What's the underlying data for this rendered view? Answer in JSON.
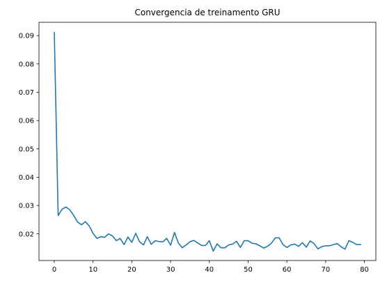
{
  "chart_data": {
    "type": "line",
    "title": "Convergencia de treinamento GRU",
    "xlabel": "",
    "ylabel": "",
    "xlim": [
      -3.95,
      82.95
    ],
    "ylim": [
      0.0106,
      0.0947
    ],
    "xticks": [
      0,
      10,
      20,
      30,
      40,
      50,
      60,
      70,
      80
    ],
    "yticks": [
      0.02,
      0.03,
      0.04,
      0.05,
      0.06,
      0.07,
      0.08,
      0.09
    ],
    "grid": false,
    "line_color": "#1f77b4",
    "series": [
      {
        "x": [
          0,
          1,
          2,
          3,
          4,
          5,
          6,
          7,
          8,
          9,
          10,
          11,
          12,
          13,
          14,
          15,
          16,
          17,
          18,
          19,
          20,
          21,
          22,
          23,
          24,
          25,
          26,
          27,
          28,
          29,
          30,
          31,
          32,
          33,
          34,
          35,
          36,
          37,
          38,
          39,
          40,
          41,
          42,
          43,
          44,
          45,
          46,
          47,
          48,
          49,
          50,
          51,
          52,
          53,
          54,
          55,
          56,
          57,
          58,
          59,
          60,
          61,
          62,
          63,
          64,
          65,
          66,
          67,
          68,
          69,
          70,
          71,
          72,
          73,
          74,
          75,
          76,
          77,
          78,
          79
        ],
        "values": [
          0.0911,
          0.0265,
          0.0287,
          0.0295,
          0.0285,
          0.0265,
          0.0242,
          0.0232,
          0.0243,
          0.0228,
          0.0202,
          0.0184,
          0.019,
          0.0188,
          0.02,
          0.0193,
          0.0176,
          0.0184,
          0.0162,
          0.0189,
          0.017,
          0.0202,
          0.0172,
          0.0161,
          0.019,
          0.0163,
          0.0176,
          0.0173,
          0.0172,
          0.0184,
          0.016,
          0.0205,
          0.0168,
          0.0151,
          0.0161,
          0.0172,
          0.0177,
          0.0168,
          0.0159,
          0.0159,
          0.0176,
          0.0139,
          0.0165,
          0.0151,
          0.0151,
          0.0161,
          0.0164,
          0.0174,
          0.0152,
          0.0176,
          0.0176,
          0.0167,
          0.0165,
          0.0158,
          0.015,
          0.0156,
          0.0167,
          0.0186,
          0.0186,
          0.0162,
          0.0152,
          0.0161,
          0.0164,
          0.0156,
          0.0169,
          0.0153,
          0.0175,
          0.0166,
          0.0147,
          0.0155,
          0.0158,
          0.0158,
          0.0162,
          0.0166,
          0.0154,
          0.0146,
          0.0176,
          0.017,
          0.0162,
          0.0162
        ]
      }
    ]
  }
}
